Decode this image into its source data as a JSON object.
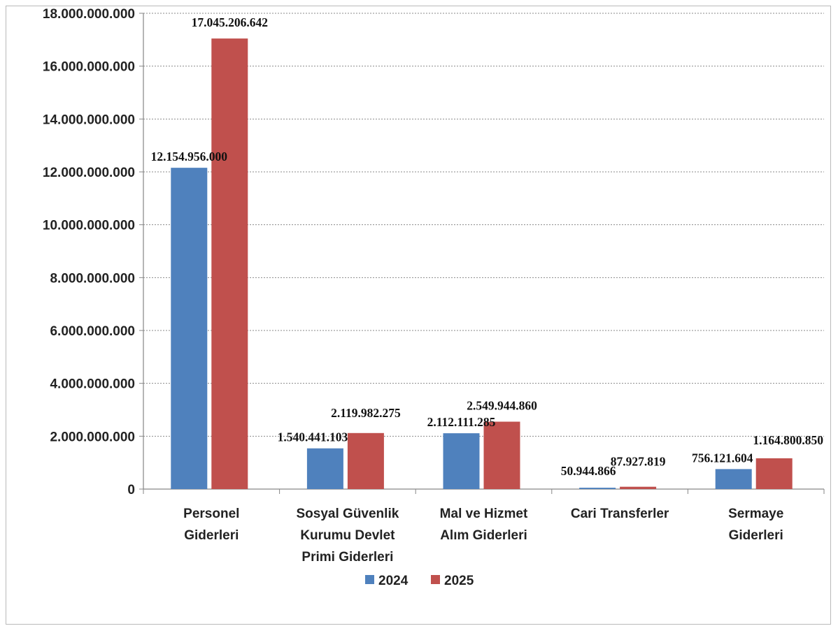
{
  "chart_data": {
    "type": "bar",
    "categories": [
      [
        "Personel",
        "Giderleri"
      ],
      [
        "Sosyal Güvenlik",
        "Kurumu Devlet",
        "Primi Giderleri"
      ],
      [
        "Mal ve Hizmet",
        "Alım Giderleri"
      ],
      [
        "Cari Transferler"
      ],
      [
        "Sermaye",
        "Giderleri"
      ]
    ],
    "series": [
      {
        "name": "2024",
        "color": "#4f81bd",
        "values": [
          12154956000,
          1540441103,
          2112111285,
          50944866,
          756121604
        ],
        "labels": [
          "12.154.956.000",
          "1.540.441.103",
          "2.112.111.285",
          "50.944.866",
          "756.121.604"
        ]
      },
      {
        "name": "2025",
        "color": "#c0504d",
        "values": [
          17045206642,
          2119982275,
          2549944860,
          87927819,
          1164800850
        ],
        "labels": [
          "17.045.206.642",
          "2.119.982.275",
          "2.549.944.860",
          "87.927.819",
          "1.164.800.850"
        ]
      }
    ],
    "ylim": [
      0,
      18000000000
    ],
    "yticks": [
      0,
      2000000000,
      4000000000,
      6000000000,
      8000000000,
      10000000000,
      12000000000,
      14000000000,
      16000000000,
      18000000000
    ],
    "ytick_labels": [
      "0",
      "2.000.000.000",
      "4.000.000.000",
      "6.000.000.000",
      "8.000.000.000",
      "10.000.000.000",
      "12.000.000.000",
      "14.000.000.000",
      "16.000.000.000",
      "18.000.000.000"
    ],
    "grid": true,
    "legend": "bottom"
  }
}
